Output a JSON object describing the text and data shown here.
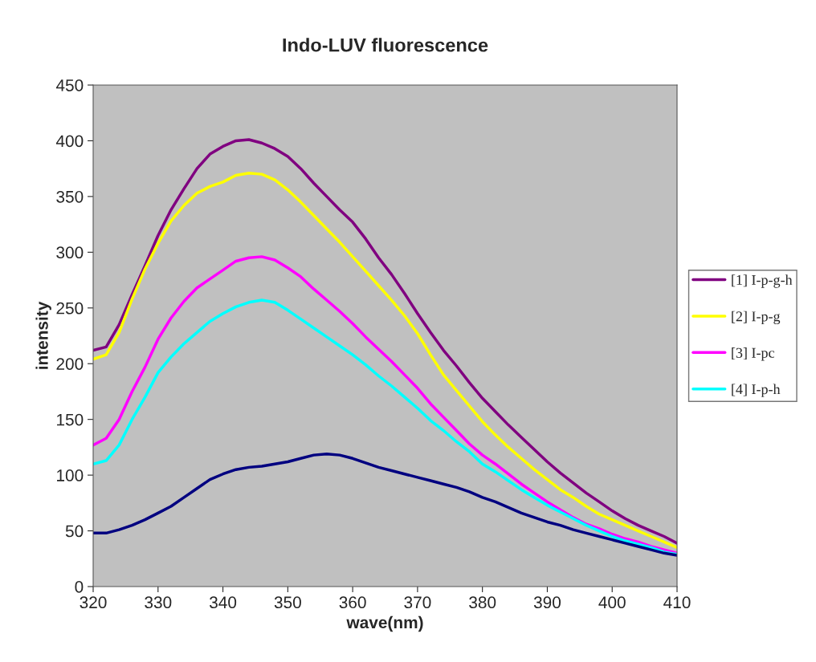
{
  "chart_data": {
    "type": "line",
    "title": "Indo-LUV fluorescence",
    "xlabel": "wave(nm)",
    "ylabel": "intensity",
    "x": [
      320,
      322,
      324,
      326,
      328,
      330,
      332,
      334,
      336,
      338,
      340,
      342,
      344,
      346,
      348,
      350,
      352,
      354,
      356,
      358,
      360,
      362,
      364,
      366,
      368,
      370,
      372,
      374,
      376,
      378,
      380,
      382,
      384,
      386,
      388,
      390,
      392,
      394,
      396,
      398,
      400,
      402,
      404,
      406,
      408,
      410
    ],
    "series": [
      {
        "name": "[1] I-p-g-h",
        "color": "#800080",
        "values": [
          212,
          215,
          235,
          262,
          288,
          315,
          338,
          357,
          375,
          388,
          395,
          400,
          401,
          398,
          393,
          386,
          375,
          362,
          350,
          338,
          327,
          312,
          295,
          280,
          263,
          245,
          228,
          212,
          198,
          183,
          169,
          157,
          145,
          134,
          123,
          112,
          102,
          93,
          84,
          76,
          68,
          61,
          55,
          50,
          45,
          39
        ]
      },
      {
        "name": "[2] I-p-g",
        "color": "#ffff00",
        "values": [
          204,
          208,
          228,
          258,
          285,
          308,
          328,
          342,
          353,
          359,
          363,
          369,
          371,
          370,
          365,
          356,
          345,
          333,
          321,
          309,
          296,
          283,
          270,
          257,
          243,
          227,
          208,
          190,
          176,
          162,
          148,
          136,
          125,
          115,
          105,
          96,
          87,
          80,
          72,
          65,
          60,
          55,
          50,
          45,
          40,
          35
        ]
      },
      {
        "name": "[3] I-pc",
        "color": "#ff00ff",
        "values": [
          127,
          133,
          150,
          175,
          197,
          222,
          241,
          256,
          268,
          276,
          284,
          292,
          295,
          296,
          293,
          286,
          278,
          267,
          257,
          247,
          236,
          224,
          213,
          202,
          190,
          178,
          164,
          152,
          140,
          128,
          118,
          110,
          101,
          92,
          84,
          76,
          69,
          62,
          56,
          52,
          47,
          43,
          40,
          36,
          33,
          30
        ]
      },
      {
        "name": "[4] I-p-h",
        "color": "#00ffff",
        "values": [
          110,
          113,
          127,
          150,
          170,
          192,
          206,
          218,
          228,
          238,
          245,
          251,
          255,
          257,
          255,
          248,
          240,
          232,
          224,
          216,
          208,
          199,
          189,
          180,
          170,
          160,
          149,
          140,
          130,
          121,
          110,
          103,
          95,
          87,
          80,
          73,
          67,
          61,
          55,
          50,
          45,
          41,
          38,
          35,
          31,
          29
        ]
      },
      {
        "color": "#000080",
        "values": [
          48,
          48,
          51,
          55,
          60,
          66,
          72,
          80,
          88,
          96,
          101,
          105,
          107,
          108,
          110,
          112,
          115,
          118,
          119,
          118,
          115,
          111,
          107,
          104,
          101,
          98,
          95,
          92,
          89,
          85,
          80,
          76,
          71,
          66,
          62,
          58,
          55,
          51,
          48,
          45,
          42,
          39,
          36,
          33,
          30,
          28
        ]
      }
    ],
    "xlim": [
      320,
      410
    ],
    "xticks": [
      320,
      330,
      340,
      350,
      360,
      370,
      380,
      390,
      400,
      410
    ],
    "ylim": [
      0,
      450
    ],
    "yticks": [
      0,
      50,
      100,
      150,
      200,
      250,
      300,
      350,
      400,
      450
    ],
    "grid": false,
    "legend": "right",
    "marker": "none",
    "line_style": "solid"
  }
}
